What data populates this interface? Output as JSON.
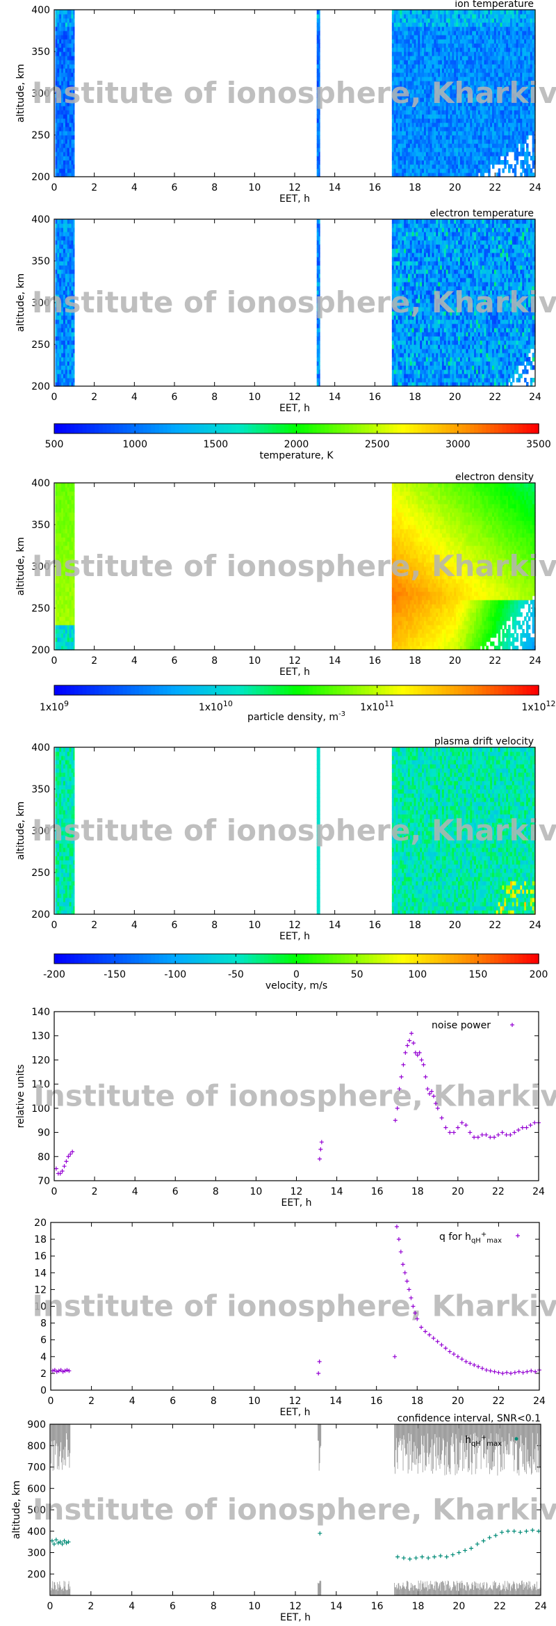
{
  "watermark": "Institute of ionosphere, Kharkiv",
  "chart_data": [
    {
      "id": "ion",
      "type": "heatmap",
      "title": "ion temperature",
      "xlabel": "EET, h",
      "ylabel": "altitude, km",
      "xlim": [
        0,
        24
      ],
      "ylim": [
        200,
        400
      ],
      "xticks": [
        "0",
        "2",
        "4",
        "6",
        "8",
        "10",
        "12",
        "14",
        "16",
        "18",
        "20",
        "22",
        "24"
      ],
      "yticks": [
        "200",
        "250",
        "300",
        "350",
        "400"
      ],
      "data_windows": [
        [
          0.05,
          1.0
        ],
        [
          13.1,
          13.25
        ],
        [
          16.85,
          24
        ]
      ],
      "dominant_value": "about 700–1000 K",
      "colorbar": "temperature"
    },
    {
      "id": "electron",
      "type": "heatmap",
      "title": "electron temperature",
      "xlabel": "EET, h",
      "ylabel": "altitude, km",
      "xlim": [
        0,
        24
      ],
      "ylim": [
        200,
        400
      ],
      "xticks": [
        "0",
        "2",
        "4",
        "6",
        "8",
        "10",
        "12",
        "14",
        "16",
        "18",
        "20",
        "22",
        "24"
      ],
      "yticks": [
        "200",
        "250",
        "300",
        "350",
        "400"
      ],
      "data_windows": [
        [
          0.05,
          1.0
        ],
        [
          13.1,
          13.25
        ],
        [
          16.85,
          24
        ]
      ],
      "dominant_value": "about 800–1200 K",
      "colorbar": "temperature"
    },
    {
      "id": "temp_cb",
      "type": "colorbar",
      "label": "temperature, K",
      "range": [
        500,
        3500
      ],
      "ticks": [
        "500",
        "1000",
        "1500",
        "2000",
        "2500",
        "3000",
        "3500"
      ]
    },
    {
      "id": "density",
      "type": "heatmap",
      "title": "electron density",
      "xlabel": "EET, h",
      "ylabel": "altitude, km",
      "xlim": [
        0,
        24
      ],
      "ylim": [
        200,
        400
      ],
      "xticks": [
        "0",
        "2",
        "4",
        "6",
        "8",
        "10",
        "12",
        "14",
        "16",
        "18",
        "20",
        "22",
        "24"
      ],
      "yticks": [
        "200",
        "250",
        "300",
        "350",
        "400"
      ],
      "data_windows": [
        [
          0.05,
          1.0
        ],
        [
          16.85,
          24
        ]
      ],
      "dominant_value": "about 1e10–4e11 m^-3, peak near 17 h at 250–280 km",
      "colorbar": "particle density"
    },
    {
      "id": "dens_cb",
      "type": "colorbar",
      "label": "particle density, m",
      "label_sup": "-3",
      "scale": "log",
      "range": [
        1000000000.0,
        1000000000000.0
      ],
      "ticks": [
        {
          "base": "1x10",
          "exp": "9"
        },
        {
          "base": "1x10",
          "exp": "10"
        },
        {
          "base": "1x10",
          "exp": "11"
        },
        {
          "base": "1x10",
          "exp": "12"
        }
      ]
    },
    {
      "id": "velocity",
      "type": "heatmap",
      "title": "plasma drift velocity",
      "xlabel": "EET, h",
      "ylabel": "altitude, km",
      "xlim": [
        0,
        24
      ],
      "ylim": [
        200,
        400
      ],
      "xticks": [
        "0",
        "2",
        "4",
        "6",
        "8",
        "10",
        "12",
        "14",
        "16",
        "18",
        "20",
        "22",
        "24"
      ],
      "yticks": [
        "200",
        "250",
        "300",
        "350",
        "400"
      ],
      "data_windows": [
        [
          0.05,
          1.0
        ],
        [
          13.1,
          13.25
        ],
        [
          16.85,
          24
        ]
      ],
      "dominant_value": "about -80 to +20 m/s",
      "colorbar": "velocity"
    },
    {
      "id": "vel_cb",
      "type": "colorbar",
      "label": "velocity, m/s",
      "range": [
        -200,
        200
      ],
      "ticks": [
        "-200",
        "-150",
        "-100",
        "-50",
        "0",
        "50",
        "100",
        "150",
        "200"
      ]
    },
    {
      "id": "noise",
      "type": "scatter",
      "legend": "noise power",
      "xlabel": "EET, h",
      "ylabel": "relative units",
      "xlim": [
        0,
        24
      ],
      "ylim": [
        70,
        140
      ],
      "xticks": [
        "0",
        "2",
        "4",
        "6",
        "8",
        "10",
        "12",
        "14",
        "16",
        "18",
        "20",
        "22",
        "24"
      ],
      "yticks": [
        "70",
        "80",
        "90",
        "100",
        "110",
        "120",
        "130",
        "140"
      ],
      "series": [
        {
          "name": "noise power",
          "x": [
            0.1,
            0.2,
            0.3,
            0.4,
            0.5,
            0.6,
            0.7,
            0.8,
            0.9,
            13.15,
            13.2,
            13.25,
            16.9,
            17.0,
            17.1,
            17.2,
            17.3,
            17.4,
            17.5,
            17.6,
            17.7,
            17.8,
            17.9,
            18.0,
            18.1,
            18.2,
            18.3,
            18.4,
            18.5,
            18.6,
            18.7,
            18.8,
            18.9,
            19.0,
            19.2,
            19.4,
            19.6,
            19.8,
            20.0,
            20.2,
            20.4,
            20.6,
            20.8,
            21.0,
            21.2,
            21.4,
            21.6,
            21.8,
            22.0,
            22.2,
            22.4,
            22.6,
            22.8,
            23.0,
            23.2,
            23.4,
            23.6,
            23.8,
            24.0
          ],
          "y": [
            75,
            73,
            73,
            74,
            76,
            78,
            80,
            81,
            82,
            79,
            83,
            86,
            95,
            100,
            108,
            113,
            118,
            123,
            126,
            128,
            131,
            127,
            123,
            122,
            123,
            120,
            118,
            113,
            108,
            106,
            107,
            105,
            102,
            100,
            96,
            92,
            90,
            90,
            92,
            94,
            93,
            90,
            88,
            88,
            89,
            89,
            88,
            88,
            89,
            90,
            89,
            89,
            90,
            91,
            92,
            92,
            93,
            94,
            94
          ]
        }
      ]
    },
    {
      "id": "q",
      "type": "scatter",
      "legend": "q for h",
      "legend_sub": "qH",
      "legend_sup": "+",
      "legend_sub2": "max",
      "xlabel": "EET, h",
      "ylabel": "",
      "xlim": [
        0,
        24
      ],
      "ylim": [
        0,
        20
      ],
      "xticks": [
        "0",
        "2",
        "4",
        "6",
        "8",
        "10",
        "12",
        "14",
        "16",
        "18",
        "20",
        "22",
        "24"
      ],
      "yticks": [
        "0",
        "2",
        "4",
        "6",
        "8",
        "10",
        "12",
        "14",
        "16",
        "18",
        "20"
      ],
      "series": [
        {
          "name": "q",
          "x": [
            0.1,
            0.2,
            0.3,
            0.4,
            0.5,
            0.6,
            0.7,
            0.8,
            0.9,
            13.15,
            13.2,
            16.9,
            17.0,
            17.1,
            17.2,
            17.3,
            17.4,
            17.5,
            17.6,
            17.7,
            17.8,
            17.9,
            18.0,
            18.2,
            18.4,
            18.6,
            18.8,
            19.0,
            19.2,
            19.4,
            19.6,
            19.8,
            20.0,
            20.2,
            20.4,
            20.6,
            20.8,
            21.0,
            21.2,
            21.4,
            21.6,
            21.8,
            22.0,
            22.2,
            22.4,
            22.6,
            22.8,
            23.0,
            23.2,
            23.4,
            23.6,
            23.8,
            24.0
          ],
          "y": [
            2.3,
            2.4,
            2.2,
            2.3,
            2.4,
            2.2,
            2.3,
            2.4,
            2.3,
            2.0,
            3.4,
            4.0,
            19.5,
            18.0,
            16.5,
            15.0,
            14.0,
            13.0,
            12.0,
            11.0,
            10.0,
            9.2,
            8.5,
            7.5,
            7.0,
            6.6,
            6.2,
            5.8,
            5.4,
            5.0,
            4.6,
            4.3,
            4.0,
            3.7,
            3.4,
            3.2,
            3.0,
            2.8,
            2.6,
            2.4,
            2.3,
            2.2,
            2.1,
            2.0,
            2.1,
            2.0,
            2.1,
            2.2,
            2.1,
            2.2,
            2.3,
            2.2,
            2.4
          ]
        }
      ]
    },
    {
      "id": "hmax",
      "type": "scatter",
      "title": "confidence interval, SNR<0.1",
      "legend": "h",
      "legend_sub": "qH",
      "legend_sup": "+",
      "legend_sub2": "max",
      "xlabel": "EET, h",
      "ylabel": "altitude, km",
      "xlim": [
        0,
        24
      ],
      "ylim": [
        100,
        900
      ],
      "xticks": [
        "0",
        "2",
        "4",
        "6",
        "8",
        "10",
        "12",
        "14",
        "16",
        "18",
        "20",
        "22",
        "24"
      ],
      "yticks": [
        "200",
        "300",
        "400",
        "500",
        "600",
        "700",
        "800",
        "900"
      ],
      "confidence": {
        "x_windows": [
          [
            0.05,
            1.0
          ],
          [
            13.1,
            13.25
          ],
          [
            16.85,
            24
          ]
        ],
        "upper": 700,
        "lower": 150
      },
      "series": [
        {
          "name": "hmax",
          "x": [
            0.1,
            0.2,
            0.3,
            0.4,
            0.5,
            0.6,
            0.7,
            0.8,
            0.9,
            13.2,
            17.0,
            17.3,
            17.6,
            17.9,
            18.2,
            18.5,
            18.8,
            19.1,
            19.4,
            19.7,
            20.0,
            20.3,
            20.6,
            20.9,
            21.2,
            21.5,
            21.8,
            22.1,
            22.4,
            22.7,
            23.0,
            23.3,
            23.6,
            23.9
          ],
          "y": [
            355,
            340,
            360,
            345,
            350,
            340,
            355,
            345,
            350,
            390,
            280,
            275,
            270,
            275,
            280,
            275,
            280,
            285,
            280,
            290,
            300,
            310,
            320,
            340,
            355,
            370,
            380,
            395,
            400,
            400,
            395,
            400,
            405,
            400
          ]
        }
      ]
    }
  ]
}
